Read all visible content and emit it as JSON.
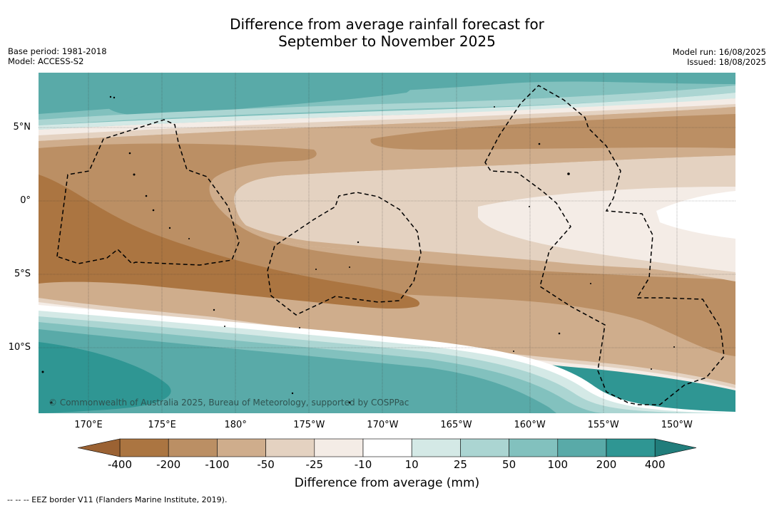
{
  "title": {
    "line1": "Difference from average rainfall forecast for",
    "line2": "September to November 2025"
  },
  "meta_left": {
    "base_period": "Base period: 1981-2018",
    "model": "Model: ACCESS-S2"
  },
  "meta_right": {
    "model_run": "Model run: 16/08/2025",
    "issued": "Issued: 18/08/2025"
  },
  "map": {
    "lat_labels": [
      "5°N",
      "0°",
      "5°S",
      "10°S"
    ],
    "lon_labels": [
      "170°E",
      "175°E",
      "180°",
      "175°W",
      "170°W",
      "165°W",
      "160°W",
      "155°W",
      "150°W"
    ],
    "copyright": "© Commonwealth of Australia 2025, Bureau of Meteorology, supported by COSPPac"
  },
  "colorbar": {
    "title": "Difference from average (mm)",
    "labels": [
      "-400",
      "-200",
      "-100",
      "-50",
      "-25",
      "-10",
      "10",
      "25",
      "50",
      "100",
      "200",
      "400"
    ],
    "colors": [
      "#ab7541",
      "#bb8f64",
      "#cfad8c",
      "#e4d2c1",
      "#f4ece6",
      "#ffffff",
      "#d4e9e6",
      "#abd5d2",
      "#82c1be",
      "#59aaa8",
      "#2f9693"
    ],
    "under_color": "#9b6233",
    "over_color": "#217d7b"
  },
  "footnote": "-- -- -- EEZ border V11 (Flanders Marine Institute, 2019)."
}
